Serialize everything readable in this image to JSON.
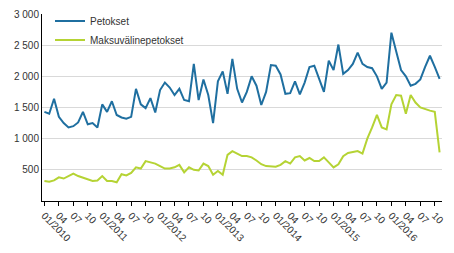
{
  "chart_data": {
    "type": "line",
    "categories": [
      "01/2010",
      null,
      null,
      "04",
      null,
      null,
      "07",
      null,
      null,
      "10",
      null,
      null,
      "01/2011",
      null,
      null,
      "04",
      null,
      null,
      "07",
      null,
      null,
      "10",
      null,
      null,
      "01/2012",
      null,
      null,
      "04",
      null,
      null,
      "07",
      null,
      null,
      "10",
      null,
      null,
      "01/2013",
      null,
      null,
      "04",
      null,
      null,
      "07",
      null,
      null,
      "10",
      null,
      null,
      "01/2014",
      null,
      null,
      "04",
      null,
      null,
      "07",
      null,
      null,
      "10",
      null,
      null,
      "01/2015",
      null,
      null,
      "04",
      null,
      null,
      "07",
      null,
      null,
      "10",
      null,
      null,
      "01/2016",
      null,
      null,
      "04",
      null,
      null,
      "07",
      null,
      null,
      "10",
      null
    ],
    "series": [
      {
        "name": "Petokset",
        "color": "#1f6fa0",
        "values": [
          1430,
          1400,
          1640,
          1350,
          1250,
          1180,
          1200,
          1260,
          1430,
          1230,
          1250,
          1180,
          1550,
          1430,
          1600,
          1380,
          1340,
          1320,
          1350,
          1800,
          1550,
          1490,
          1650,
          1420,
          1780,
          1900,
          1820,
          1700,
          1800,
          1620,
          1600,
          2200,
          1620,
          1950,
          1700,
          1250,
          1920,
          2080,
          1720,
          2280,
          1800,
          1580,
          1750,
          2000,
          1850,
          1540,
          1750,
          2180,
          2170,
          2030,
          1720,
          1730,
          1920,
          1710,
          1900,
          2150,
          2170,
          1950,
          1750,
          2250,
          2100,
          2510,
          2040,
          2100,
          2200,
          2380,
          2200,
          2150,
          2130,
          2000,
          1800,
          1900,
          2700,
          2400,
          2100,
          2000,
          1850,
          1880,
          1950,
          2150,
          2330,
          2150,
          1960
        ]
      },
      {
        "name": "Maksuvälinepetokset",
        "color": "#b5d334",
        "values": [
          320,
          310,
          330,
          380,
          360,
          400,
          440,
          400,
          370,
          350,
          320,
          330,
          400,
          320,
          320,
          300,
          430,
          410,
          450,
          540,
          520,
          640,
          620,
          600,
          560,
          520,
          520,
          540,
          580,
          460,
          540,
          500,
          490,
          600,
          560,
          420,
          480,
          420,
          740,
          800,
          760,
          720,
          720,
          700,
          650,
          590,
          560,
          560,
          550,
          580,
          640,
          600,
          700,
          720,
          650,
          690,
          640,
          640,
          700,
          620,
          540,
          590,
          720,
          770,
          780,
          800,
          760,
          1000,
          1180,
          1380,
          1180,
          1150,
          1550,
          1700,
          1690,
          1400,
          1700,
          1580,
          1500,
          1470,
          1450,
          1430,
          780
        ]
      }
    ],
    "ylim": [
      0,
      3000
    ],
    "yticks": [
      500,
      {
        "value": 1000,
        "label": "1 000"
      },
      {
        "value": 1500,
        "label": "1 500"
      },
      {
        "value": 2000,
        "label": "2 000"
      },
      {
        "value": 2500,
        "label": "2 500"
      },
      {
        "value": 3000,
        "label": "3 000"
      }
    ],
    "grid": true,
    "legend": "top-left"
  }
}
